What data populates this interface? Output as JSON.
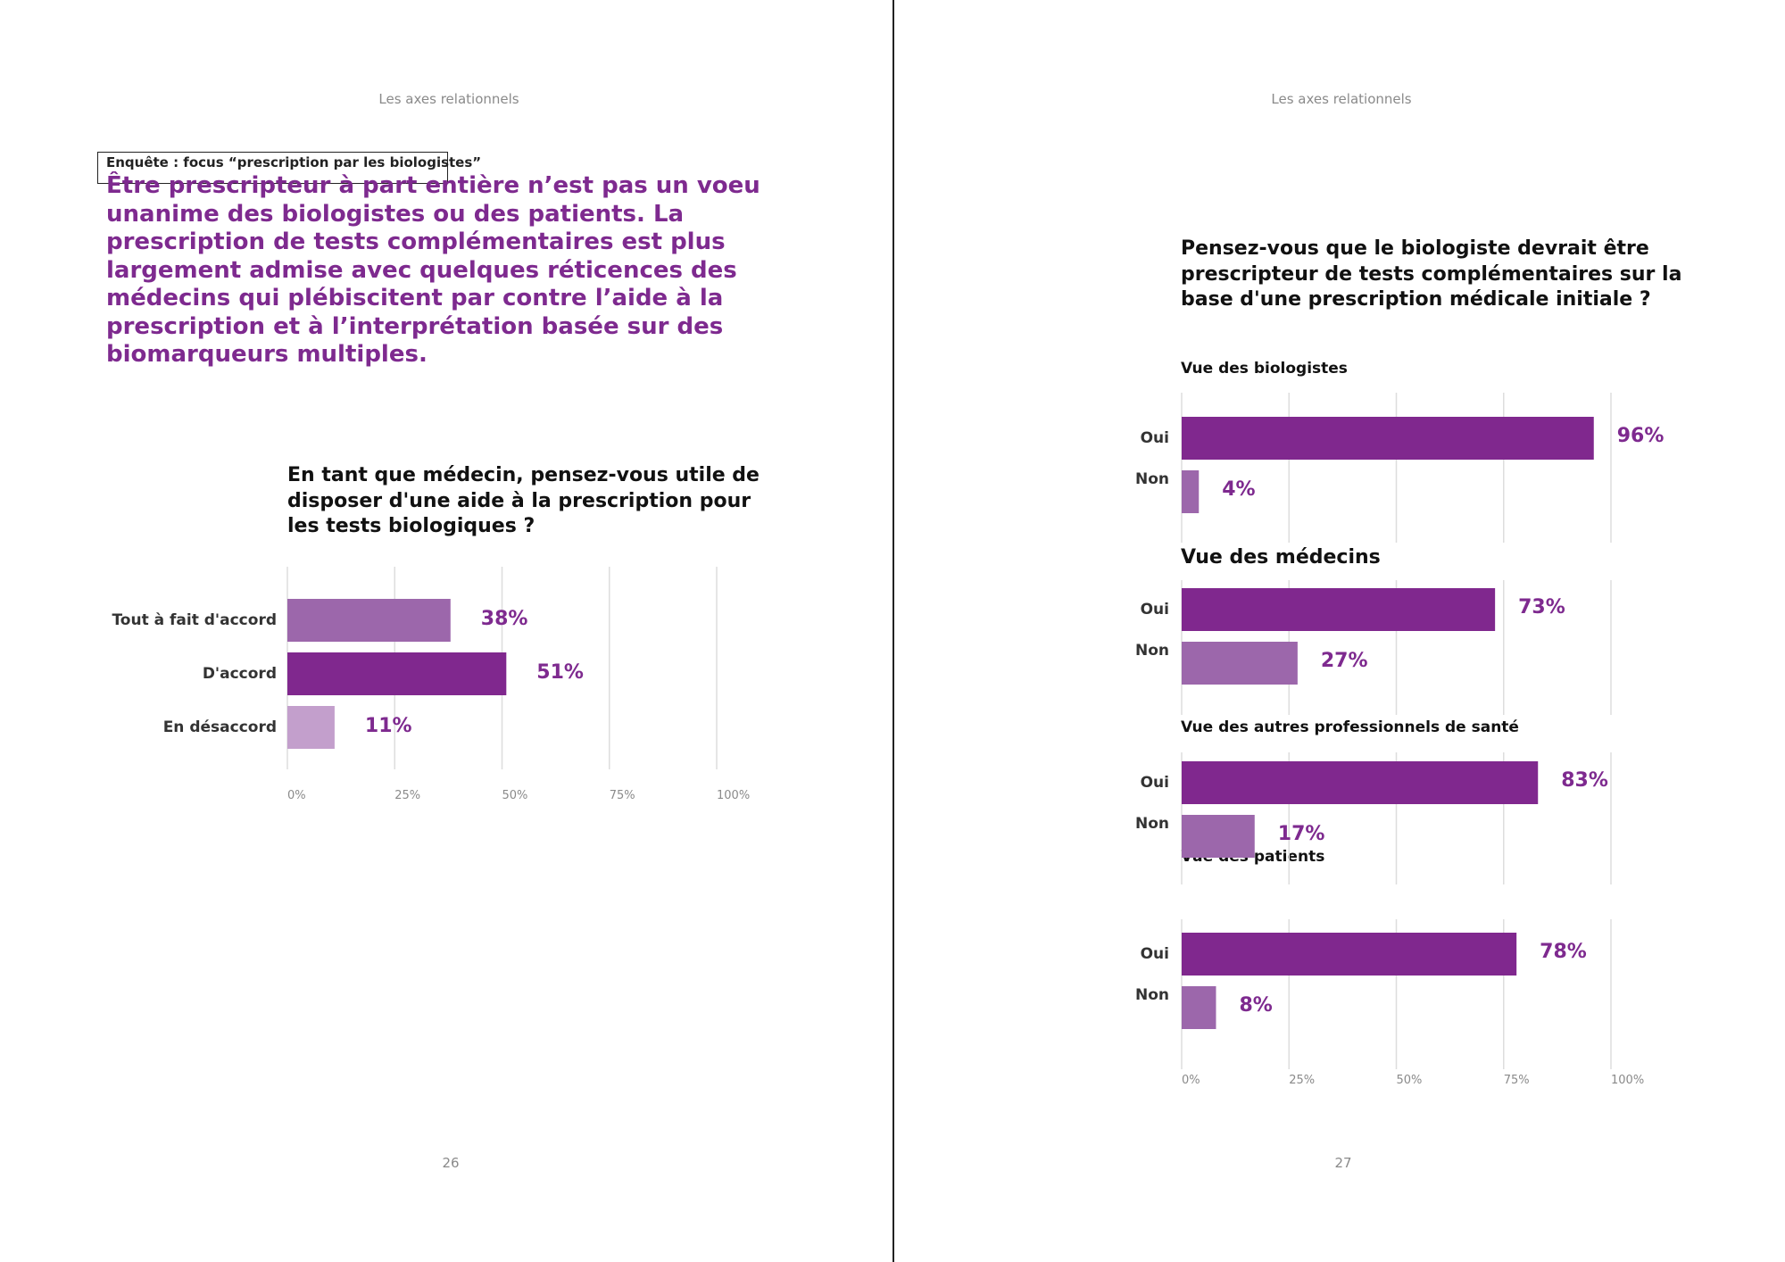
{
  "left_page": {
    "running_head": "Les axes relationnels",
    "tag": "Enquête : focus “prescription par les biologistes”",
    "headline": "Être prescripteur à part entière n’est pas un voeu unanime des biologistes ou des patients. La prescription de tests complémentaires est plus largement admise avec quelques réticences des médecins qui plébiscitent par contre l’aide à la prescription et à l’interprétation basée sur des biomarqueurs multiples.",
    "page_number": "26"
  },
  "right_page": {
    "running_head": "Les axes relationnels",
    "page_number": "27"
  },
  "colors": {
    "accent": "#7e2a8f",
    "bar_dark": "#80288e",
    "bar_mid": "#9c67ab",
    "bar_light": "#c39fcc",
    "grid": "#dddddd"
  },
  "chart_data": [
    {
      "type": "bar",
      "orientation": "horizontal",
      "title": "En tant que médecin, pensez-vous utile de disposer d'une aide à la prescription pour les tests biologiques ?",
      "categories": [
        "Tout à fait d'accord",
        "D'accord",
        "En désaccord"
      ],
      "values": [
        38,
        51,
        11
      ],
      "value_labels": [
        "38%",
        "51%",
        "11%"
      ],
      "bar_colors": [
        "#9c67ab",
        "#80288e",
        "#c39fcc"
      ],
      "xlim": [
        0,
        100
      ],
      "xticks": [
        "0%",
        "25%",
        "50%",
        "75%",
        "100%"
      ],
      "grid": true
    },
    {
      "type": "bar",
      "orientation": "horizontal",
      "title": "Pensez-vous que le biologiste devrait être prescripteur de tests complémentaires sur la base d'une prescription médicale initiale ?",
      "categories": [
        "Oui",
        "Non"
      ],
      "xlim": [
        0,
        100
      ],
      "xticks": [
        "0%",
        "25%",
        "50%",
        "75%",
        "100%"
      ],
      "grid": true,
      "groups": [
        {
          "name": "Vue des biologistes",
          "values": [
            96,
            4
          ],
          "value_labels": [
            "96%",
            "4%"
          ]
        },
        {
          "name": "Vue des médecins",
          "values": [
            73,
            27
          ],
          "value_labels": [
            "73%",
            "27%"
          ]
        },
        {
          "name": "Vue des autres professionnels de santé",
          "values": [
            83,
            17
          ],
          "value_labels": [
            "83%",
            "17%"
          ]
        },
        {
          "name": "Vue des patients",
          "values": [
            78,
            8
          ],
          "value_labels": [
            "78%",
            "8%"
          ]
        }
      ]
    }
  ]
}
